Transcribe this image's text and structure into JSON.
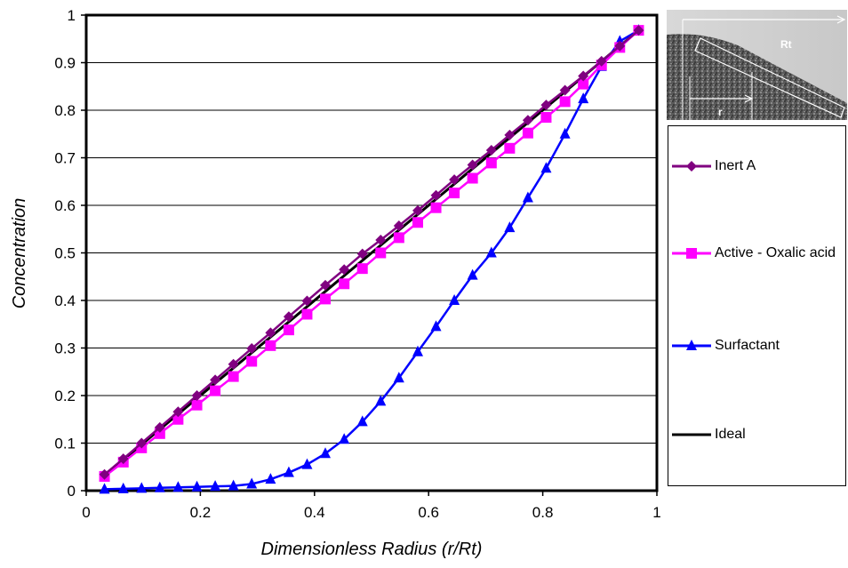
{
  "chart_data": {
    "type": "line",
    "title": "",
    "xlabel": "Dimensionless Radius (r/Rt)",
    "ylabel": "Concentration",
    "xlim": [
      0,
      1
    ],
    "ylim": [
      0,
      1
    ],
    "xticks": [
      "0",
      "0.2",
      "0.4",
      "0.6",
      "0.8",
      "1"
    ],
    "yticks": [
      "0",
      "0.1",
      "0.2",
      "0.3",
      "0.4",
      "0.5",
      "0.6",
      "0.7",
      "0.8",
      "0.9",
      "1"
    ],
    "grid": "horizontal",
    "legend_position": "right",
    "series": [
      {
        "name": "Inert A",
        "color": "#800080",
        "marker": "diamond",
        "x": [
          0.032,
          0.065,
          0.097,
          0.129,
          0.161,
          0.194,
          0.226,
          0.258,
          0.29,
          0.323,
          0.355,
          0.387,
          0.419,
          0.452,
          0.484,
          0.516,
          0.548,
          0.581,
          0.613,
          0.645,
          0.677,
          0.71,
          0.742,
          0.774,
          0.806,
          0.839,
          0.871,
          0.903,
          0.935,
          0.968
        ],
        "y": [
          0.034,
          0.067,
          0.1,
          0.133,
          0.166,
          0.2,
          0.233,
          0.266,
          0.299,
          0.332,
          0.366,
          0.399,
          0.432,
          0.465,
          0.498,
          0.527,
          0.557,
          0.589,
          0.621,
          0.654,
          0.685,
          0.716,
          0.748,
          0.779,
          0.811,
          0.842,
          0.872,
          0.903,
          0.935,
          0.968
        ]
      },
      {
        "name": "Active - Oxalic acid",
        "color": "#FF00FF",
        "marker": "square",
        "x": [
          0.032,
          0.065,
          0.097,
          0.129,
          0.161,
          0.194,
          0.226,
          0.258,
          0.29,
          0.323,
          0.355,
          0.387,
          0.419,
          0.452,
          0.484,
          0.516,
          0.548,
          0.581,
          0.613,
          0.645,
          0.677,
          0.71,
          0.742,
          0.774,
          0.806,
          0.839,
          0.871,
          0.903,
          0.935,
          0.968
        ],
        "y": [
          0.03,
          0.06,
          0.09,
          0.12,
          0.15,
          0.18,
          0.21,
          0.24,
          0.272,
          0.305,
          0.338,
          0.371,
          0.403,
          0.435,
          0.467,
          0.5,
          0.532,
          0.564,
          0.595,
          0.626,
          0.657,
          0.689,
          0.72,
          0.752,
          0.785,
          0.818,
          0.855,
          0.895,
          0.932,
          0.968
        ]
      },
      {
        "name": "Surfactant",
        "color": "#0000FF",
        "marker": "triangle",
        "x": [
          0.032,
          0.065,
          0.097,
          0.129,
          0.161,
          0.194,
          0.226,
          0.258,
          0.29,
          0.323,
          0.355,
          0.387,
          0.419,
          0.452,
          0.484,
          0.516,
          0.548,
          0.581,
          0.613,
          0.645,
          0.677,
          0.71,
          0.742,
          0.774,
          0.806,
          0.839,
          0.871,
          0.903,
          0.935,
          0.968
        ],
        "y": [
          0.003,
          0.004,
          0.005,
          0.006,
          0.007,
          0.008,
          0.009,
          0.01,
          0.014,
          0.024,
          0.038,
          0.055,
          0.078,
          0.108,
          0.145,
          0.188,
          0.237,
          0.292,
          0.345,
          0.4,
          0.453,
          0.5,
          0.553,
          0.616,
          0.678,
          0.75,
          0.824,
          0.892,
          0.945,
          0.968
        ]
      },
      {
        "name": "Ideal",
        "color": "#000000",
        "marker": "none",
        "x": [
          0.032,
          0.968
        ],
        "y": [
          0.032,
          0.968
        ]
      }
    ],
    "inset_image": {
      "description_labels": [
        "Rt",
        "r"
      ]
    }
  }
}
